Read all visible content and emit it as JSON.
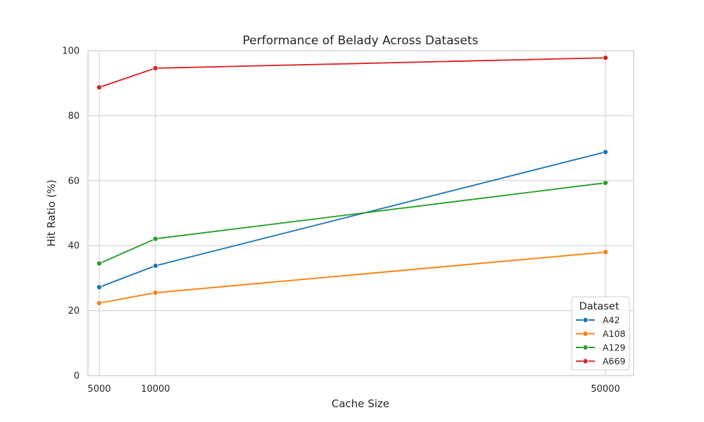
{
  "chart_data": {
    "type": "line",
    "title": "Performance of Belady Across Datasets",
    "xlabel": "Cache Size",
    "ylabel": "Hit Ratio (%)",
    "x": [
      5000,
      10000,
      50000
    ],
    "xticks": [
      "5000",
      "10000",
      "50000"
    ],
    "xlim": [
      4000,
      52500
    ],
    "ylim": [
      0,
      100
    ],
    "yticks": [
      0,
      20,
      40,
      60,
      80,
      100
    ],
    "grid": true,
    "legend": {
      "title": "Dataset",
      "placement": "bottom-right"
    },
    "series": [
      {
        "name": "A42",
        "color": "#1f77b4",
        "values": [
          27.2,
          33.8,
          68.8
        ]
      },
      {
        "name": "A108",
        "color": "#ff7f0e",
        "values": [
          22.3,
          25.5,
          38.0
        ]
      },
      {
        "name": "A129",
        "color": "#2ca02c",
        "values": [
          34.5,
          42.1,
          59.3
        ]
      },
      {
        "name": "A669",
        "color": "#d62728",
        "values": [
          88.7,
          94.6,
          97.8
        ]
      }
    ]
  }
}
